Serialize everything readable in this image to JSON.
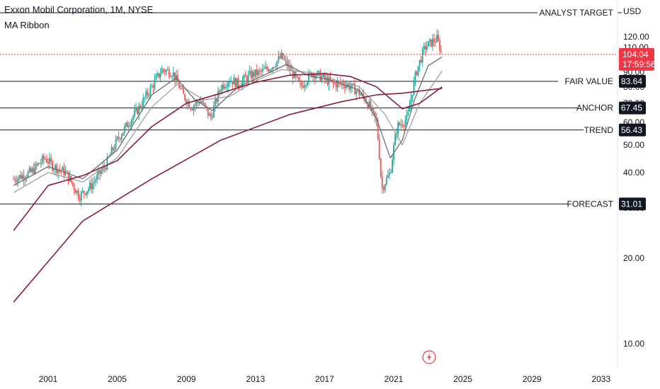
{
  "header": {
    "title": "Exxon Mobil Corporation, 1M, NYSE",
    "indicator": "MA Ribbon",
    "currency": "USD"
  },
  "colors": {
    "up": "#26a69a",
    "down": "#ef5350",
    "ma_fast": "#6d6d6d",
    "ma_mid": "#a0a0a0",
    "ma_slow": "#8b1c3a",
    "price_tag": "#f23645",
    "level_tag": "#131722"
  },
  "chart_data": {
    "type": "candlestick",
    "y_ticks": [
      10,
      20,
      30,
      40,
      50,
      60,
      70,
      80,
      90,
      110,
      120
    ],
    "x_ticks": [
      "2001",
      "2005",
      "2009",
      "2013",
      "2017",
      "2021",
      "2025",
      "2029",
      "2033"
    ],
    "last_price": {
      "value": "104.04",
      "countdown": "17:59:56"
    },
    "levels": [
      {
        "label": "ANALYST TARGET",
        "value": 127.0,
        "tag": ""
      },
      {
        "label": "FAIR VALUE",
        "value": 83.64,
        "tag": "83.64"
      },
      {
        "label": "ANCHOR",
        "value": 67.45,
        "tag": "67.45"
      },
      {
        "label": "TREND",
        "value": 56.43,
        "tag": "56.43"
      },
      {
        "label": "FORECAST",
        "value": 31.01,
        "tag": "31.01"
      }
    ],
    "price_path": [
      [
        1999.0,
        38
      ],
      [
        2000.0,
        40
      ],
      [
        2000.8,
        45
      ],
      [
        2001.3,
        42
      ],
      [
        2002.0,
        40
      ],
      [
        2002.8,
        33
      ],
      [
        2003.5,
        36
      ],
      [
        2004.3,
        42
      ],
      [
        2005.0,
        52
      ],
      [
        2005.5,
        58
      ],
      [
        2006.3,
        68
      ],
      [
        2007.0,
        80
      ],
      [
        2007.6,
        92
      ],
      [
        2008.2,
        90
      ],
      [
        2008.8,
        75
      ],
      [
        2009.3,
        68
      ],
      [
        2009.8,
        72
      ],
      [
        2010.4,
        62
      ],
      [
        2011.0,
        80
      ],
      [
        2011.5,
        85
      ],
      [
        2012.0,
        82
      ],
      [
        2012.7,
        88
      ],
      [
        2013.3,
        90
      ],
      [
        2014.0,
        95
      ],
      [
        2014.5,
        102
      ],
      [
        2015.0,
        92
      ],
      [
        2015.6,
        80
      ],
      [
        2016.3,
        90
      ],
      [
        2016.9,
        86
      ],
      [
        2017.5,
        82
      ],
      [
        2018.2,
        82
      ],
      [
        2018.8,
        78
      ],
      [
        2019.4,
        72
      ],
      [
        2020.0,
        60
      ],
      [
        2020.3,
        35
      ],
      [
        2020.8,
        40
      ],
      [
        2021.2,
        58
      ],
      [
        2021.8,
        62
      ],
      [
        2022.3,
        90
      ],
      [
        2022.8,
        110
      ],
      [
        2023.2,
        115
      ],
      [
        2023.5,
        118
      ],
      [
        2023.8,
        104
      ]
    ],
    "ma_fast": [
      [
        1999.0,
        36
      ],
      [
        2001.0,
        42
      ],
      [
        2003.0,
        38
      ],
      [
        2005.0,
        48
      ],
      [
        2007.0,
        75
      ],
      [
        2008.4,
        86
      ],
      [
        2009.5,
        72
      ],
      [
        2010.5,
        66
      ],
      [
        2012.0,
        80
      ],
      [
        2013.5,
        88
      ],
      [
        2014.8,
        96
      ],
      [
        2016.0,
        88
      ],
      [
        2017.5,
        84
      ],
      [
        2019.0,
        78
      ],
      [
        2020.0,
        62
      ],
      [
        2020.8,
        45
      ],
      [
        2021.5,
        52
      ],
      [
        2022.2,
        72
      ],
      [
        2023.0,
        95
      ],
      [
        2023.8,
        102
      ]
    ],
    "ma_mid": [
      [
        1999.0,
        34
      ],
      [
        2001.0,
        40
      ],
      [
        2003.0,
        37
      ],
      [
        2005.0,
        45
      ],
      [
        2007.0,
        68
      ],
      [
        2008.5,
        82
      ],
      [
        2010.0,
        72
      ],
      [
        2011.5,
        74
      ],
      [
        2013.0,
        84
      ],
      [
        2014.5,
        92
      ],
      [
        2016.0,
        90
      ],
      [
        2017.5,
        85
      ],
      [
        2019.0,
        80
      ],
      [
        2020.5,
        64
      ],
      [
        2021.5,
        50
      ],
      [
        2022.5,
        70
      ],
      [
        2023.8,
        91
      ]
    ],
    "ma_slow": [
      [
        1999.0,
        25
      ],
      [
        2001.0,
        36
      ],
      [
        2003.0,
        39
      ],
      [
        2005.0,
        44
      ],
      [
        2007.0,
        58
      ],
      [
        2009.0,
        70
      ],
      [
        2011.0,
        76
      ],
      [
        2013.0,
        83
      ],
      [
        2015.0,
        88
      ],
      [
        2017.0,
        89
      ],
      [
        2018.5,
        87
      ],
      [
        2020.0,
        80
      ],
      [
        2021.5,
        67
      ],
      [
        2022.5,
        70
      ],
      [
        2023.8,
        80
      ]
    ],
    "ma_slow2": [
      [
        1999.0,
        14
      ],
      [
        2003.0,
        27
      ],
      [
        2007.0,
        38
      ],
      [
        2011.0,
        52
      ],
      [
        2015.0,
        64
      ],
      [
        2018.0,
        71
      ],
      [
        2020.0,
        75
      ],
      [
        2021.5,
        76
      ],
      [
        2023.0,
        78
      ],
      [
        2023.8,
        79
      ]
    ]
  }
}
